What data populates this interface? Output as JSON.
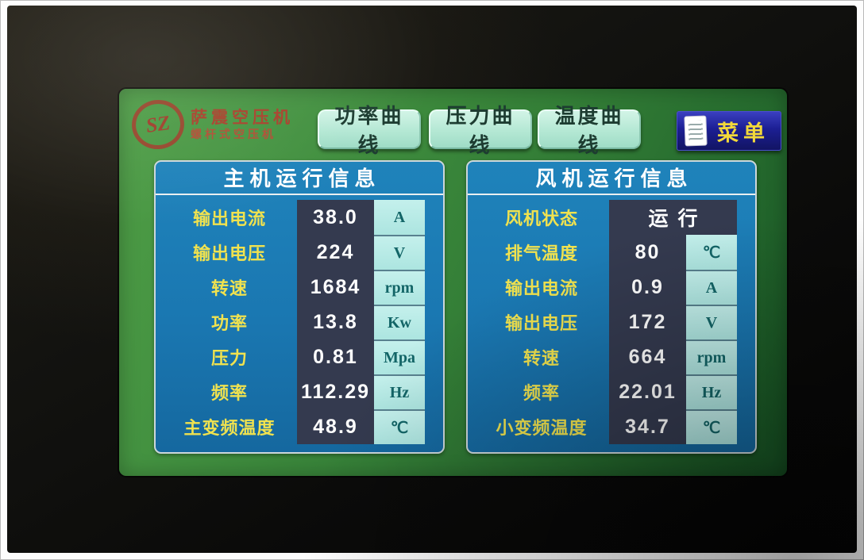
{
  "logo": {
    "mark": "SZ",
    "line1": "萨震空压机",
    "line2": "螺杆式空压机"
  },
  "nav": {
    "buttons": [
      {
        "label": "功率曲线"
      },
      {
        "label": "压力曲线"
      },
      {
        "label": "温度曲线"
      }
    ],
    "menu_label": "菜单"
  },
  "panels": [
    {
      "key": "main-info",
      "title": "主机运行信息",
      "rows": [
        {
          "label": "输出电流",
          "value": "38.0",
          "unit": "A"
        },
        {
          "label": "输出电压",
          "value": "224",
          "unit": "V"
        },
        {
          "label": "转速",
          "value": "1684",
          "unit": "rpm"
        },
        {
          "label": "功率",
          "value": "13.8",
          "unit": "Kw"
        },
        {
          "label": "压力",
          "value": "0.81",
          "unit": "Mpa"
        },
        {
          "label": "频率",
          "value": "112.29",
          "unit": "Hz"
        },
        {
          "label": "主变频温度",
          "value": "48.9",
          "unit": "℃"
        }
      ]
    },
    {
      "key": "fan-info",
      "title": "风机运行信息",
      "rows": [
        {
          "label": "风机状态",
          "value": "运行",
          "unit": null
        },
        {
          "label": "排气温度",
          "value": "80",
          "unit": "℃"
        },
        {
          "label": "输出电流",
          "value": "0.9",
          "unit": "A"
        },
        {
          "label": "输出电压",
          "value": "172",
          "unit": "V"
        },
        {
          "label": "转速",
          "value": "664",
          "unit": "rpm"
        },
        {
          "label": "频率",
          "value": "22.01",
          "unit": "Hz"
        },
        {
          "label": "小变频温度",
          "value": "34.7",
          "unit": "℃"
        }
      ]
    }
  ],
  "colors": {
    "screen_green": "#3c8a3c",
    "panel_blue": "#1a77b1",
    "value_bg": "#343a4f",
    "unit_bg": "#aee6e1",
    "unit_text": "#136567",
    "label_yellow": "#f0e24f",
    "button_mint": "#b4e8d4",
    "menu_blue": "#1c1f93",
    "menu_text_yellow": "#f2d93a",
    "logo_red": "#a8402b"
  }
}
